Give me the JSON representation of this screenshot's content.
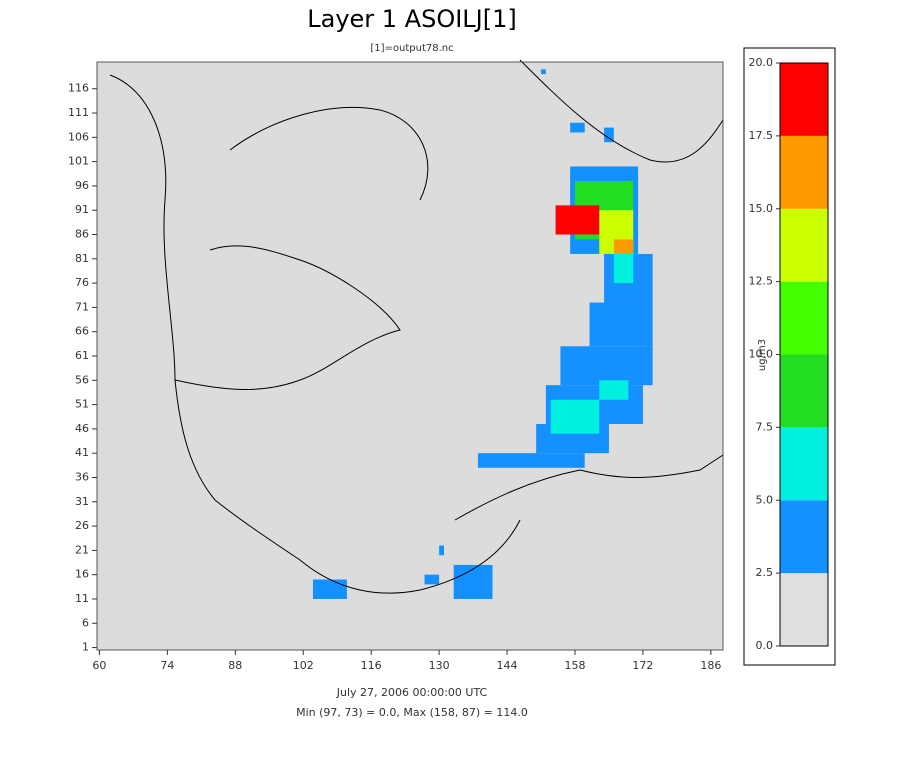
{
  "chart_data": {
    "type": "heatmap",
    "title": "Layer 1 ASOILJ[1]",
    "subtitle": "[1]=output78.nc",
    "footer": [
      "July 27, 2006 00:00:00 UTC",
      "Min (97, 73) = 0.0, Max (158, 87) = 114.0"
    ],
    "background": "#dcdcdc",
    "xlim": [
      59.5,
      188.5
    ],
    "ylim": [
      0.5,
      121.5
    ],
    "xticks": [
      60,
      74,
      88,
      102,
      116,
      130,
      144,
      158,
      172,
      186
    ],
    "yticks": [
      1,
      6,
      11,
      16,
      21,
      26,
      31,
      36,
      41,
      46,
      51,
      56,
      61,
      66,
      71,
      76,
      81,
      86,
      91,
      96,
      101,
      106,
      111,
      116
    ],
    "cells": [
      {
        "x": [
          138,
          160
        ],
        "y": [
          38,
          41
        ],
        "value": 4
      },
      {
        "x": [
          150,
          165
        ],
        "y": [
          41,
          47
        ],
        "value": 4
      },
      {
        "x": [
          152,
          172
        ],
        "y": [
          47,
          55
        ],
        "value": 4
      },
      {
        "x": [
          155,
          174
        ],
        "y": [
          55,
          63
        ],
        "value": 4
      },
      {
        "x": [
          161,
          174
        ],
        "y": [
          63,
          72
        ],
        "value": 4
      },
      {
        "x": [
          164,
          174
        ],
        "y": [
          72,
          82
        ],
        "value": 4
      },
      {
        "x": [
          157,
          171
        ],
        "y": [
          82,
          100
        ],
        "value": 4
      },
      {
        "x": [
          153,
          163
        ],
        "y": [
          45,
          52
        ],
        "value": 6
      },
      {
        "x": [
          163,
          169
        ],
        "y": [
          52,
          56
        ],
        "value": 6
      },
      {
        "x": [
          166,
          170
        ],
        "y": [
          76,
          84
        ],
        "value": 6
      },
      {
        "x": [
          158,
          170
        ],
        "y": [
          85,
          97
        ],
        "value": 9
      },
      {
        "x": [
          163,
          170
        ],
        "y": [
          82,
          91
        ],
        "value": 14
      },
      {
        "x": [
          166,
          170
        ],
        "y": [
          82,
          85
        ],
        "value": 16
      },
      {
        "x": [
          154,
          163
        ],
        "y": [
          86,
          92
        ],
        "value": 19
      },
      {
        "x": [
          104,
          111
        ],
        "y": [
          11,
          15
        ],
        "value": 4
      },
      {
        "x": [
          127,
          130
        ],
        "y": [
          14,
          16
        ],
        "value": 4
      },
      {
        "x": [
          133,
          141
        ],
        "y": [
          11,
          18
        ],
        "value": 4
      },
      {
        "x": [
          130,
          131
        ],
        "y": [
          20,
          22
        ],
        "value": 4
      },
      {
        "x": [
          151,
          152
        ],
        "y": [
          119,
          120
        ],
        "value": 4
      },
      {
        "x": [
          157,
          160
        ],
        "y": [
          107,
          109
        ],
        "value": 4
      },
      {
        "x": [
          164,
          166
        ],
        "y": [
          105,
          108
        ],
        "value": 4
      }
    ],
    "colorbar": {
      "label": "ug/m3",
      "lim": [
        0,
        20
      ],
      "ticks": [
        {
          "value": 0,
          "label": "0.0"
        },
        {
          "value": 2.5,
          "label": "2.5"
        },
        {
          "value": 5,
          "label": "5.0"
        },
        {
          "value": 7.5,
          "label": "7.5"
        },
        {
          "value": 10,
          "label": "10.0"
        },
        {
          "value": 12.5,
          "label": "12.5"
        },
        {
          "value": 15,
          "label": "15.0"
        },
        {
          "value": 17.5,
          "label": "17.5"
        },
        {
          "value": 20,
          "label": "20.0"
        }
      ],
      "colors": [
        "#e0e0e0",
        "#1490ff",
        "#00f0e0",
        "#22dd22",
        "#44ff00",
        "#ccff00",
        "#ff9900",
        "#ff0000"
      ]
    }
  }
}
